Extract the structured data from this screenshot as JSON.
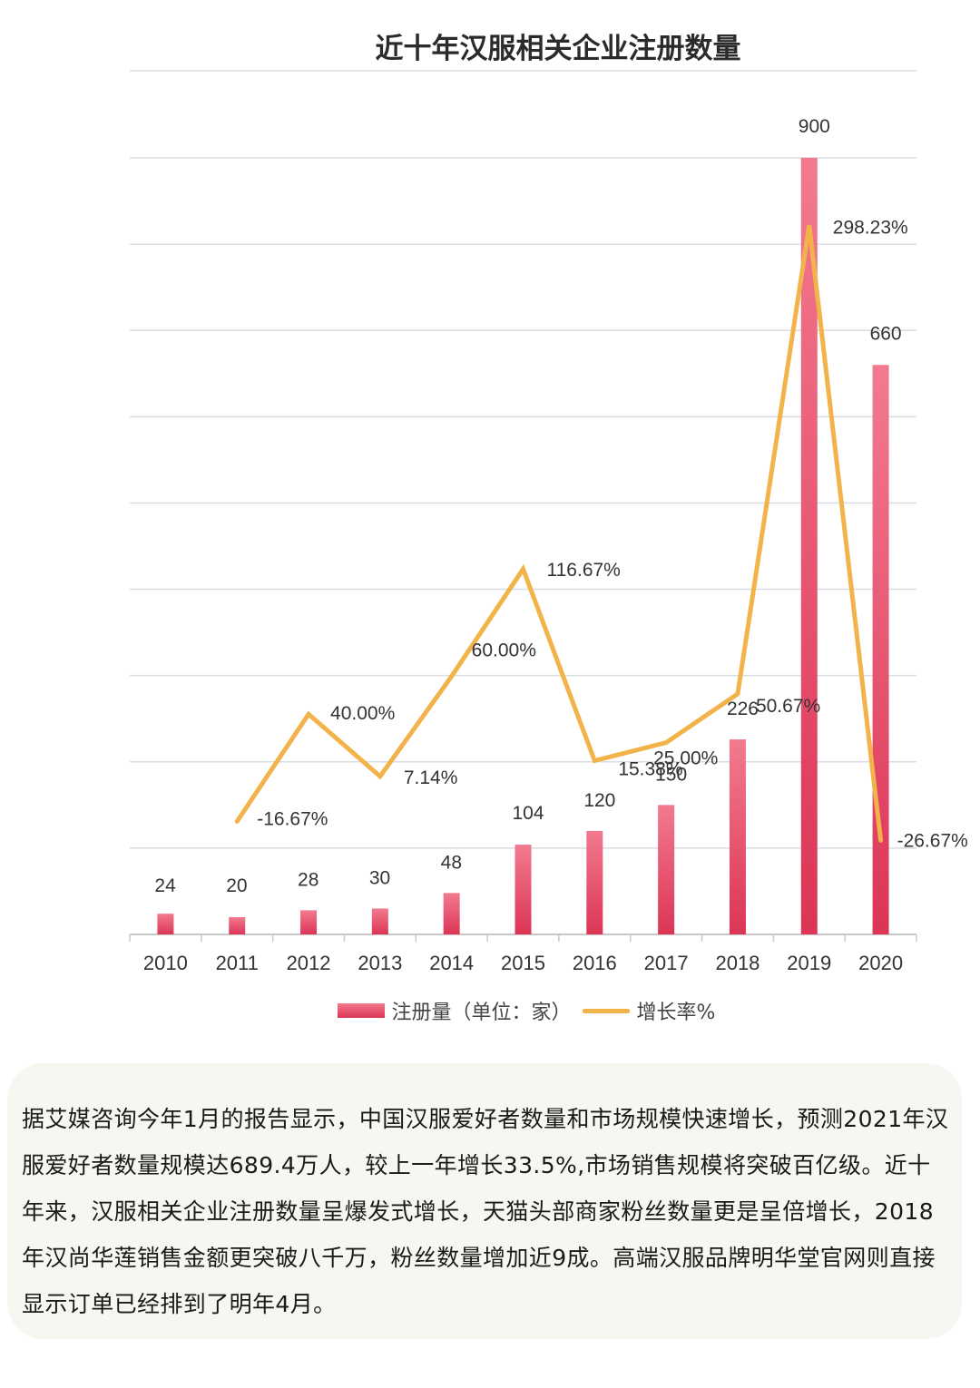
{
  "chart_data": {
    "type": "bar",
    "title": "近十年汉服相关企业注册数量",
    "categories": [
      "2010",
      "2011",
      "2012",
      "2013",
      "2014",
      "2015",
      "2016",
      "2017",
      "2018",
      "2019",
      "2020"
    ],
    "series": [
      {
        "name": "注册量（单位：家）",
        "kind": "bar",
        "values": [
          24,
          20,
          28,
          30,
          48,
          104,
          120,
          150,
          226,
          900,
          660
        ],
        "labels": [
          "24",
          "20",
          "28",
          "30",
          "48",
          "104",
          "120",
          "150",
          "226",
          "900",
          "660"
        ]
      },
      {
        "name": "增长率%",
        "kind": "line",
        "values": [
          null,
          -16.67,
          40.0,
          7.14,
          60.0,
          116.67,
          15.38,
          25.0,
          50.67,
          298.23,
          -26.67
        ],
        "labels": [
          "",
          "-16.67%",
          "40.00%",
          "7.14%",
          "60.00%",
          "116.67%",
          "15.38%",
          "25.00%",
          "50.67%",
          "298.23%",
          "-26.67%"
        ]
      }
    ],
    "ylim": [
      0,
      900
    ],
    "line_ylim": [
      -50,
      320
    ],
    "grid": true,
    "legend": "bottom-center",
    "xlabel": "",
    "ylabel": ""
  },
  "legend": {
    "bar_label": "注册量（单位：家）",
    "line_label": "增长率%"
  },
  "note": {
    "text": "据艾媒咨询今年1月的报告显示，中国汉服爱好者数量和市场规模快速增长，预测2021年汉服爱好者数量规模达689.4万人，较上一年增长33.5%,市场销售规模将突破百亿级。近十年来，汉服相关企业注册数量呈爆发式增长，天猫头部商家粉丝数量更是呈倍增长，2018年汉尚华莲销售金额更突破八千万，粉丝数量增加近9成。高端汉服品牌明华堂官网则直接显示订单已经排到了明年4月。"
  },
  "colors": {
    "bar_top": "#f27a8f",
    "bar_bottom": "#dc3556",
    "line": "#f2b44a",
    "grid": "#d8dce3"
  }
}
